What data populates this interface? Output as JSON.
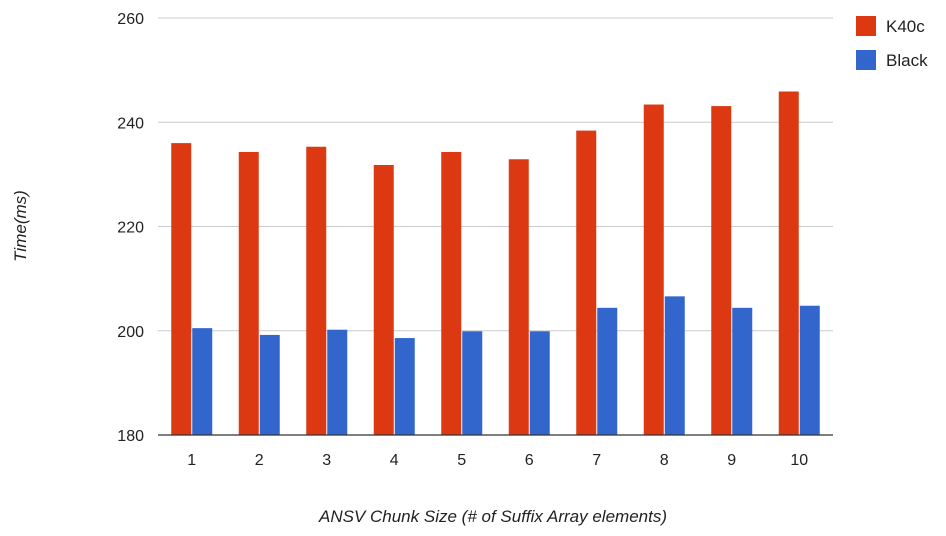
{
  "chart_data": {
    "type": "bar",
    "title": "",
    "xlabel": "ANSV Chunk Size (# of Suffix Array elements)",
    "ylabel": "Time(ms)",
    "ylim": [
      180,
      260
    ],
    "yticks": [
      180,
      200,
      220,
      240,
      260
    ],
    "grid": true,
    "legend_position": "top-right",
    "categories": [
      "1",
      "2",
      "3",
      "4",
      "5",
      "6",
      "7",
      "8",
      "9",
      "10"
    ],
    "series": [
      {
        "name": "K40c",
        "color": "#dc3912",
        "values": [
          236.0,
          234.3,
          235.3,
          231.8,
          234.3,
          232.9,
          238.4,
          243.4,
          243.1,
          245.9
        ]
      },
      {
        "name": "Black",
        "color": "#3366cc",
        "values": [
          200.5,
          199.2,
          200.2,
          198.6,
          199.9,
          199.9,
          204.4,
          206.6,
          204.4,
          204.8
        ]
      }
    ]
  }
}
